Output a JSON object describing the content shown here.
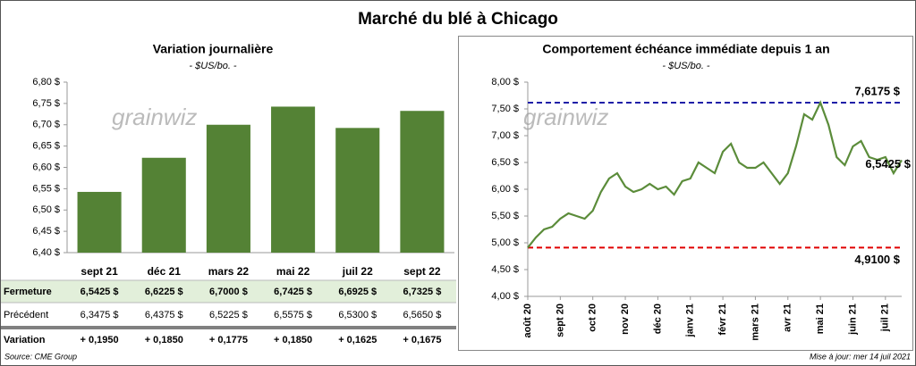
{
  "title": "Marché du blé à Chicago",
  "watermark": "grainwiz",
  "chart_data": [
    {
      "type": "bar",
      "title": "Variation journalière",
      "subtitle": "- $US/bo. -",
      "categories": [
        "sept 21",
        "déc 21",
        "mars 22",
        "mai 22",
        "juil 22",
        "sept 22"
      ],
      "values": [
        6.5425,
        6.6225,
        6.7,
        6.7425,
        6.6925,
        6.7325
      ],
      "color": "#548235",
      "ylim": [
        6.4,
        6.8
      ],
      "yticks": [
        {
          "value": 6.4,
          "label": "6,40 $"
        },
        {
          "value": 6.45,
          "label": "6,45 $"
        },
        {
          "value": 6.5,
          "label": "6,50 $"
        },
        {
          "value": 6.55,
          "label": "6,55 $"
        },
        {
          "value": 6.6,
          "label": "6,60 $"
        },
        {
          "value": 6.65,
          "label": "6,65 $"
        },
        {
          "value": 6.7,
          "label": "6,70 $"
        },
        {
          "value": 6.75,
          "label": "6,75 $"
        },
        {
          "value": 6.8,
          "label": "6,80 $"
        }
      ]
    },
    {
      "type": "line",
      "title": "Comportement  échéance immédiate depuis 1 an",
      "subtitle": "- $US/bo. -",
      "categories": [
        "août 20",
        null,
        null,
        null,
        "sept 20",
        null,
        null,
        null,
        "oct 20",
        null,
        null,
        null,
        "nov 20",
        null,
        null,
        null,
        "déc 20",
        null,
        null,
        null,
        "janv 21",
        null,
        null,
        null,
        "févr 21",
        null,
        null,
        null,
        "mars 21",
        null,
        null,
        null,
        "avr 21",
        null,
        null,
        null,
        "mai 21",
        null,
        null,
        null,
        "juin 21",
        null,
        null,
        null,
        "juil 21",
        null,
        null
      ],
      "values": [
        4.91,
        5.1,
        5.25,
        5.3,
        5.45,
        5.55,
        5.5,
        5.45,
        5.6,
        5.95,
        6.2,
        6.3,
        6.05,
        5.95,
        6.0,
        6.1,
        6.0,
        6.05,
        5.9,
        6.15,
        6.2,
        6.5,
        6.4,
        6.3,
        6.7,
        6.85,
        6.5,
        6.4,
        6.4,
        6.5,
        6.3,
        6.1,
        6.3,
        6.8,
        7.4,
        7.3,
        7.6175,
        7.2,
        6.6,
        6.45,
        6.8,
        6.9,
        6.6,
        6.55,
        6.6,
        6.3,
        6.5425
      ],
      "color": "#5b8c3a",
      "ylim": [
        4.0,
        8.0
      ],
      "yticks": [
        {
          "value": 4.0,
          "label": "4,00 $"
        },
        {
          "value": 4.5,
          "label": "4,50 $"
        },
        {
          "value": 5.0,
          "label": "5,00 $"
        },
        {
          "value": 5.5,
          "label": "5,50 $"
        },
        {
          "value": 6.0,
          "label": "6,00 $"
        },
        {
          "value": 6.5,
          "label": "6,50 $"
        },
        {
          "value": 7.0,
          "label": "7,00 $"
        },
        {
          "value": 7.5,
          "label": "7,50 $"
        },
        {
          "value": 8.0,
          "label": "8,00 $"
        }
      ],
      "reference_lines": [
        {
          "value": 7.6175,
          "label": "7,6175 $",
          "color": "#1f1fa8"
        },
        {
          "value": 4.91,
          "label": "4,9100 $",
          "color": "#e00000"
        }
      ],
      "end_label": {
        "value": 6.5425,
        "label": "6,5425 $"
      }
    }
  ],
  "table": {
    "rows": [
      {
        "label": "Fermeture",
        "cells": [
          "6,5425  $",
          "6,6225  $",
          "6,7000  $",
          "6,7425  $",
          "6,6925  $",
          "6,7325  $"
        ]
      },
      {
        "label": "Précédent",
        "cells": [
          "6,3475  $",
          "6,4375  $",
          "6,5225  $",
          "6,5575  $",
          "6,5300  $",
          "6,5650  $"
        ]
      },
      {
        "label": "Variation",
        "cells": [
          "+ 0,1950",
          "+ 0,1850",
          "+ 0,1775",
          "+ 0,1850",
          "+ 0,1625",
          "+ 0,1675"
        ]
      }
    ]
  },
  "footer": {
    "source": "Source: CME Group",
    "updated": "Mise à jour: mer 14 juil 2021"
  }
}
